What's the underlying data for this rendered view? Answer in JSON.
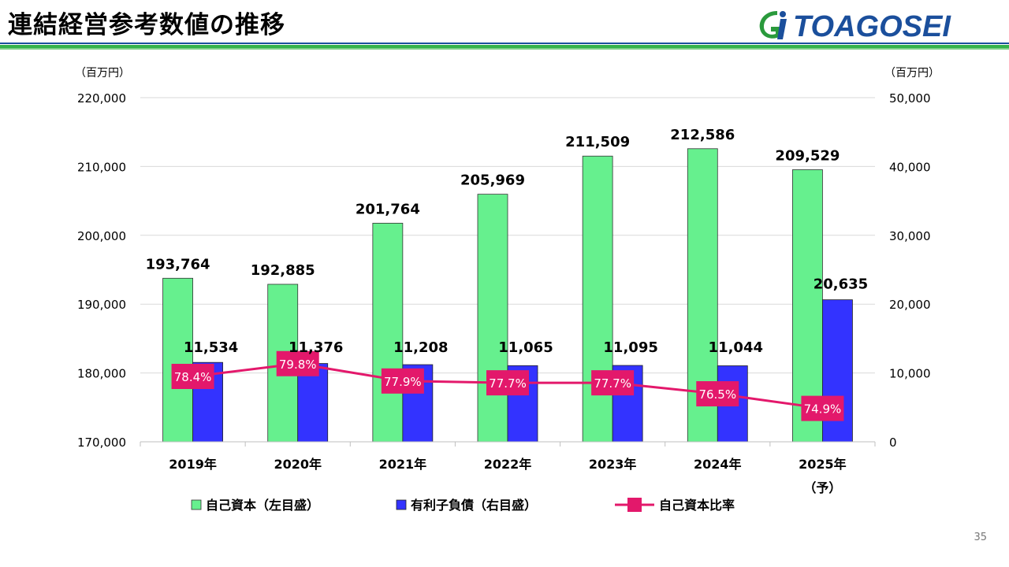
{
  "page": {
    "title": "連結経営参考数値の推移",
    "page_number": "35"
  },
  "logo": {
    "text": "TOAGOSEI"
  },
  "colors": {
    "equity": "#66f08e",
    "debt": "#3333ff",
    "ratio": "#e3186b",
    "grid": "#d9d9d9"
  },
  "chart_data": {
    "type": "bar",
    "categories": [
      "2019年",
      "2020年",
      "2021年",
      "2022年",
      "2023年",
      "2024年",
      "2025年"
    ],
    "category_notes": [
      "",
      "",
      "",
      "",
      "",
      "",
      "（予）"
    ],
    "left_axis": {
      "unit": "（百万円）",
      "ylim": [
        170000,
        220000
      ],
      "ticks": [
        "220,000",
        "210,000",
        "200,000",
        "190,000",
        "180,000",
        "170,000"
      ]
    },
    "right_axis": {
      "unit": "（百万円）",
      "ylim": [
        0,
        50000
      ],
      "ticks": [
        "50,000",
        "40,000",
        "30,000",
        "20,000",
        "10,000",
        "0"
      ]
    },
    "series": [
      {
        "name": "自己資本（左目盛）",
        "type": "bar",
        "axis": "left",
        "values": [
          193764,
          192885,
          201764,
          205969,
          211509,
          212586,
          209529
        ],
        "labels": [
          "193,764",
          "192,885",
          "201,764",
          "205,969",
          "211,509",
          "212,586",
          "209,529"
        ]
      },
      {
        "name": "有利子負債（右目盛）",
        "type": "bar",
        "axis": "right",
        "values": [
          11534,
          11376,
          11208,
          11065,
          11095,
          11044,
          20635
        ],
        "labels": [
          "11,534",
          "11,376",
          "11,208",
          "11,065",
          "11,095",
          "11,044",
          "20,635"
        ]
      },
      {
        "name": "自己資本比率",
        "type": "line",
        "unit": "%",
        "values": [
          78.4,
          79.8,
          77.9,
          77.7,
          77.7,
          76.5,
          74.9
        ],
        "labels": [
          "78.4%",
          "79.8%",
          "77.9%",
          "77.7%",
          "77.7%",
          "76.5%",
          "74.9%"
        ]
      }
    ],
    "legend_position": "bottom",
    "grid": true
  }
}
